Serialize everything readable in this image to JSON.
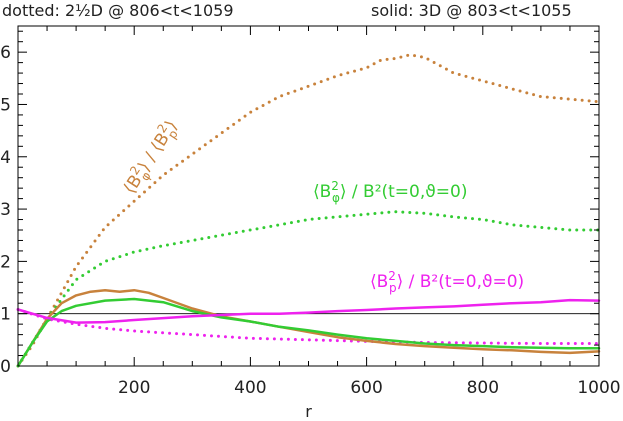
{
  "header": {
    "left": "dotted: 2½D @ 806<t<1059",
    "right": "solid: 3D @ 803<t<1055"
  },
  "colors": {
    "ratio": "#c8823c",
    "green": "#33cc33",
    "magenta": "#ee22ee",
    "reference": "#000000",
    "axis": "#000000"
  },
  "chart_data": {
    "type": "line",
    "xlabel": "r",
    "ylabel": "",
    "xlim": [
      0,
      1000
    ],
    "ylim": [
      0,
      6.5
    ],
    "xticks": [
      200,
      400,
      600,
      800,
      1000
    ],
    "yticks": [
      0,
      1,
      2,
      3,
      4,
      5,
      6
    ],
    "reference_line": {
      "y": 1,
      "color": "#000000"
    },
    "annotations": [
      {
        "text": "⟨B²φ⟩ / ⟨B²p⟩",
        "series_color": "#c8823c"
      },
      {
        "text": "⟨B²φ⟩ / B²(t=0,ϑ=0)",
        "series_color": "#33cc33"
      },
      {
        "text": "⟨B²p⟩ / B²(t=0,ϑ=0)",
        "series_color": "#ee22ee"
      }
    ],
    "series": [
      {
        "id": "ratio-dotted",
        "style": "dotted",
        "color": "#c8823c",
        "x": [
          0,
          25,
          50,
          75,
          100,
          150,
          200,
          250,
          300,
          350,
          400,
          450,
          500,
          550,
          600,
          625,
          650,
          675,
          700,
          725,
          750,
          800,
          850,
          900,
          950,
          1000
        ],
        "y": [
          0,
          0.4,
          0.9,
          1.4,
          1.9,
          2.65,
          3.15,
          3.65,
          4.05,
          4.45,
          4.85,
          5.15,
          5.35,
          5.55,
          5.7,
          5.85,
          5.88,
          5.95,
          5.9,
          5.75,
          5.6,
          5.45,
          5.3,
          5.15,
          5.1,
          5.05
        ]
      },
      {
        "id": "green-dotted",
        "style": "dotted",
        "color": "#33cc33",
        "x": [
          0,
          50,
          100,
          150,
          200,
          250,
          300,
          350,
          400,
          450,
          500,
          550,
          600,
          650,
          700,
          750,
          800,
          850,
          900,
          950,
          1000
        ],
        "y": [
          0,
          0.9,
          1.65,
          2.0,
          2.18,
          2.3,
          2.4,
          2.5,
          2.6,
          2.7,
          2.8,
          2.85,
          2.9,
          2.95,
          2.92,
          2.85,
          2.8,
          2.7,
          2.65,
          2.6,
          2.6
        ]
      },
      {
        "id": "magenta-dotted",
        "style": "dotted",
        "color": "#ee22ee",
        "x": [
          0,
          50,
          100,
          150,
          200,
          300,
          400,
          500,
          600,
          700,
          800,
          900,
          1000
        ],
        "y": [
          1.08,
          0.9,
          0.8,
          0.72,
          0.67,
          0.6,
          0.53,
          0.5,
          0.47,
          0.45,
          0.44,
          0.43,
          0.43
        ]
      },
      {
        "id": "ratio-solid",
        "style": "solid",
        "color": "#c8823c",
        "x": [
          0,
          25,
          50,
          75,
          100,
          125,
          150,
          175,
          200,
          225,
          250,
          300,
          350,
          400,
          450,
          500,
          550,
          600,
          650,
          700,
          750,
          800,
          850,
          900,
          950,
          1000
        ],
        "y": [
          0,
          0.45,
          0.9,
          1.2,
          1.35,
          1.42,
          1.45,
          1.42,
          1.45,
          1.4,
          1.3,
          1.1,
          0.95,
          0.85,
          0.75,
          0.65,
          0.55,
          0.48,
          0.42,
          0.38,
          0.35,
          0.32,
          0.3,
          0.27,
          0.25,
          0.28
        ]
      },
      {
        "id": "green-solid",
        "style": "solid",
        "color": "#33cc33",
        "x": [
          0,
          25,
          50,
          75,
          100,
          150,
          200,
          250,
          300,
          350,
          400,
          450,
          500,
          550,
          600,
          650,
          700,
          750,
          800,
          850,
          900,
          950,
          1000
        ],
        "y": [
          0,
          0.45,
          0.85,
          1.05,
          1.15,
          1.25,
          1.28,
          1.22,
          1.05,
          0.93,
          0.85,
          0.75,
          0.68,
          0.6,
          0.53,
          0.48,
          0.43,
          0.4,
          0.38,
          0.36,
          0.35,
          0.34,
          0.34
        ]
      },
      {
        "id": "magenta-solid",
        "style": "solid",
        "color": "#ee22ee",
        "x": [
          0,
          50,
          100,
          150,
          200,
          300,
          400,
          450,
          500,
          550,
          600,
          650,
          700,
          750,
          800,
          850,
          900,
          950,
          1000
        ],
        "y": [
          1.08,
          0.92,
          0.83,
          0.84,
          0.88,
          0.95,
          1.0,
          1.0,
          1.02,
          1.05,
          1.07,
          1.1,
          1.12,
          1.14,
          1.17,
          1.2,
          1.22,
          1.26,
          1.25
        ]
      }
    ]
  }
}
